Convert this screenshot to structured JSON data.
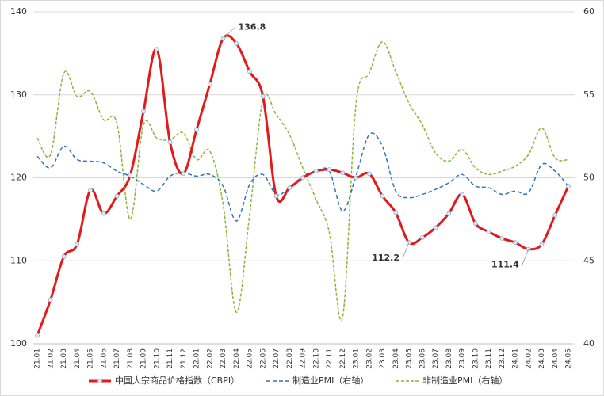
{
  "chart_data": {
    "type": "line",
    "categories": [
      "21.01",
      "21.02",
      "21.03",
      "21.04",
      "21.05",
      "21.06",
      "21.07",
      "21.08",
      "21.09",
      "21.10",
      "21.11",
      "21.12",
      "22.01",
      "22.02",
      "22.03",
      "22.04",
      "22.05",
      "22.06",
      "22.07",
      "22.08",
      "22.09",
      "22.10",
      "22.11",
      "22.12",
      "23.01",
      "23.02",
      "23.03",
      "23.04",
      "23.05",
      "23.06",
      "23.07",
      "23.08",
      "23.09",
      "23.10",
      "23.11",
      "23.12",
      "24.01",
      "24.02",
      "24.03",
      "24.04",
      "24.05"
    ],
    "ylim": [
      100,
      140
    ],
    "yticks": [
      100,
      110,
      120,
      130,
      140
    ],
    "y2lim": [
      40,
      60
    ],
    "y2ticks": [
      40,
      45,
      50,
      55,
      60
    ],
    "grid": true,
    "legend": "bottom",
    "series": [
      {
        "name": "中国大宗商品价格指数（CBPI）",
        "color": "#e31a1c",
        "values": [
          101,
          105.3,
          110.5,
          112,
          118.5,
          115.7,
          117.8,
          120.3,
          128,
          135.5,
          124.3,
          120.5,
          125.8,
          131.3,
          136.8,
          136.2,
          132.8,
          129.8,
          117.8,
          118.8,
          120,
          120.8,
          121,
          120.6,
          120,
          120.5,
          117.8,
          115.8,
          112.2,
          112.8,
          114,
          115.7,
          118,
          114.5,
          113.5,
          112.7,
          112.2,
          111.4,
          112,
          115.5,
          119
        ],
        "value_labels": [
          null,
          null,
          null,
          null,
          null,
          null,
          null,
          null,
          null,
          null,
          null,
          null,
          null,
          null,
          "136.8",
          null,
          null,
          null,
          null,
          null,
          null,
          null,
          null,
          null,
          null,
          null,
          null,
          null,
          "112.2",
          null,
          null,
          null,
          null,
          null,
          null,
          null,
          null,
          "111.4",
          null,
          null,
          null
        ]
      },
      {
        "name": "制造业PMI（右轴）",
        "color": "#2e75b6",
        "axis": "y2",
        "values": [
          51.3,
          50.6,
          51.9,
          51.1,
          51.0,
          50.9,
          50.4,
          50.1,
          49.6,
          49.2,
          50.1,
          50.3,
          50.1,
          50.2,
          49.5,
          47.4,
          49.6,
          50.2,
          49.0,
          49.4,
          50.1,
          50.4,
          50.4,
          48.0,
          50.1,
          52.6,
          51.9,
          49.2,
          48.8,
          49.0,
          49.3,
          49.7,
          50.2,
          49.5,
          49.4,
          49.0,
          49.2,
          49.1,
          50.8,
          50.4,
          49.5
        ]
      },
      {
        "name": "非制造业PMI（右轴）",
        "color": "#8db43c",
        "axis": "y2",
        "values": [
          52.4,
          51.4,
          56.3,
          54.9,
          55.2,
          53.5,
          53.3,
          47.5,
          53.2,
          52.4,
          52.3,
          52.7,
          51.1,
          51.6,
          48.4,
          41.9,
          47.8,
          54.7,
          53.8,
          52.6,
          50.6,
          48.7,
          46.7,
          41.6,
          54.4,
          56.3,
          58.2,
          56.4,
          54.5,
          53.2,
          51.5,
          51.0,
          51.7,
          50.6,
          50.2,
          50.4,
          50.7,
          51.4,
          53.0,
          51.2,
          51.1
        ]
      }
    ]
  }
}
